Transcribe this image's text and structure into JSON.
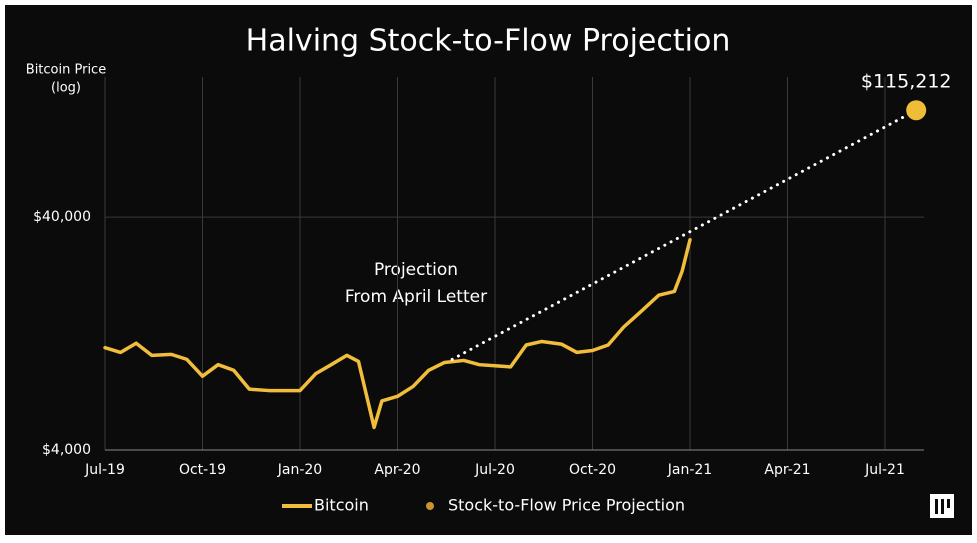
{
  "chart_data": {
    "type": "line",
    "title": "Halving Stock-to-Flow Projection",
    "y_label": [
      "Bitcoin Price",
      "(log)"
    ],
    "annotation": [
      "Projection",
      "From April Letter"
    ],
    "log_y": true,
    "grid": true,
    "xlim": [
      2019.5,
      2021.6
    ],
    "xticks": [
      {
        "value": 2019.5,
        "label": "Jul-19"
      },
      {
        "value": 2019.75,
        "label": "Oct-19"
      },
      {
        "value": 2020.0,
        "label": "Jan-20"
      },
      {
        "value": 2020.25,
        "label": "Apr-20"
      },
      {
        "value": 2020.5,
        "label": "Jul-20"
      },
      {
        "value": 2020.75,
        "label": "Oct-20"
      },
      {
        "value": 2021.0,
        "label": "Jan-21"
      },
      {
        "value": 2021.25,
        "label": "Apr-21"
      },
      {
        "value": 2021.5,
        "label": "Jul-21"
      }
    ],
    "ylim": [
      4000,
      160000
    ],
    "yticks": [
      {
        "value": 4000,
        "label": "$4,000"
      },
      {
        "value": 40000,
        "label": "$40,000"
      }
    ],
    "series": [
      {
        "name": "Bitcoin",
        "color": "#f3bd3c",
        "style": "solid",
        "x": [
          2019.5,
          2019.54,
          2019.58,
          2019.62,
          2019.67,
          2019.71,
          2019.75,
          2019.79,
          2019.83,
          2019.87,
          2019.92,
          2019.96,
          2020.0,
          2020.04,
          2020.08,
          2020.12,
          2020.15,
          2020.19,
          2020.21,
          2020.25,
          2020.29,
          2020.33,
          2020.37,
          2020.42,
          2020.46,
          2020.5,
          2020.54,
          2020.58,
          2020.62,
          2020.67,
          2020.71,
          2020.75,
          2020.79,
          2020.83,
          2020.87,
          2020.92,
          2020.96,
          2020.98,
          2021.0
        ],
        "values": [
          11000,
          10500,
          11500,
          10200,
          10300,
          9800,
          8300,
          9300,
          8800,
          7300,
          7200,
          7200,
          7200,
          8500,
          9300,
          10200,
          9600,
          5000,
          6500,
          6800,
          7500,
          8800,
          9500,
          9700,
          9300,
          9200,
          9100,
          11300,
          11700,
          11400,
          10500,
          10700,
          11300,
          13500,
          15500,
          18500,
          19200,
          23500,
          32000
        ]
      },
      {
        "name": "Stock-to-Flow Price Projection",
        "color": "#f0bd36",
        "legend_color": "#c9952c",
        "style": "dotted",
        "x": [
          2020.39,
          2021.58
        ],
        "values": [
          9800,
          115212
        ],
        "value_labels": [
          null,
          "$115,212"
        ]
      }
    ]
  }
}
